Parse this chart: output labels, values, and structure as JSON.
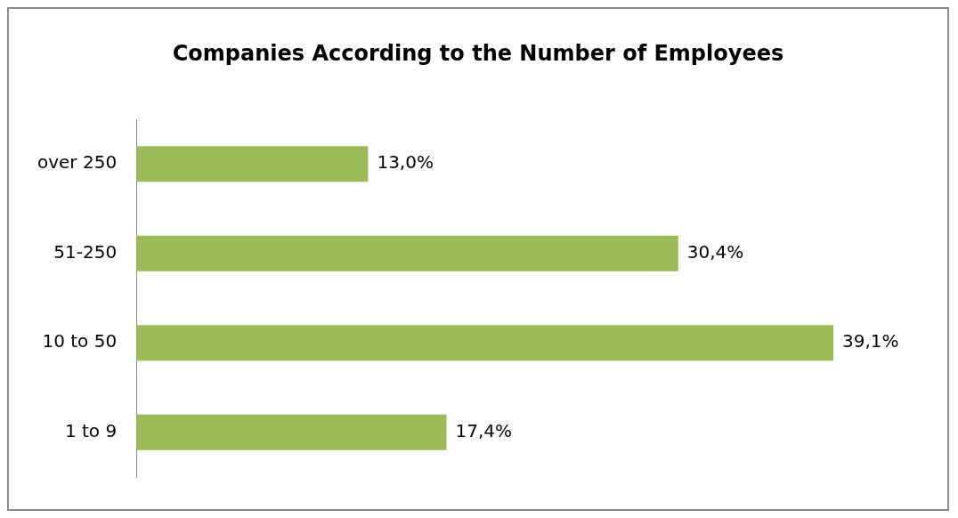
{
  "chart_data": {
    "type": "bar",
    "orientation": "horizontal",
    "title": "Companies According to the Number of Employees",
    "categories": [
      "over 250",
      "51-250",
      "10 to 50",
      "1 to 9"
    ],
    "values": [
      13.0,
      30.4,
      39.1,
      17.4
    ],
    "value_labels": [
      "13,0%",
      "30,4%",
      "39,1%",
      "17,4%"
    ],
    "color": "#9bbb59",
    "legend": false
  }
}
